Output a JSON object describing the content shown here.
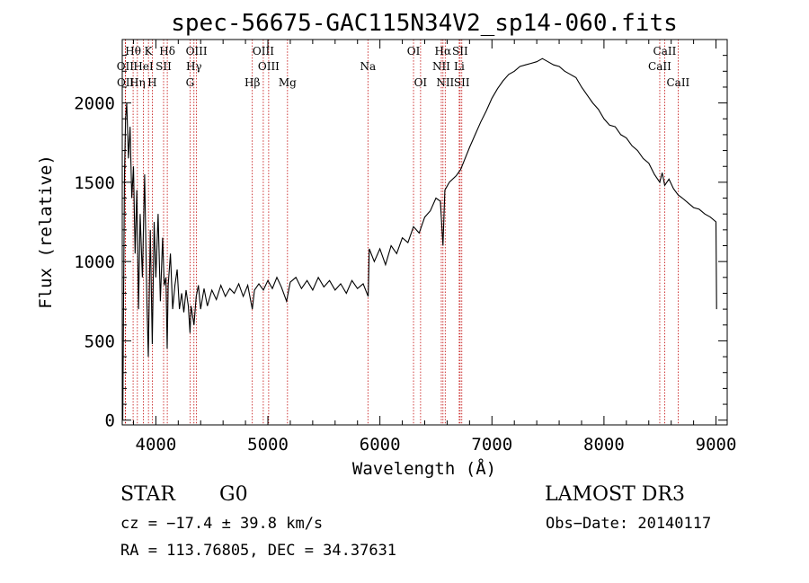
{
  "chart_data": {
    "type": "line",
    "title": "spec-56675-GAC115N34V2_sp14-060.fits",
    "xlabel": "Wavelength (Å)",
    "ylabel": "Flux (relative)",
    "xlim": [
      3700,
      9100
    ],
    "ylim": [
      -30,
      2400
    ],
    "xticks": [
      4000,
      5000,
      6000,
      7000,
      8000,
      9000
    ],
    "yticks": [
      0,
      500,
      1000,
      1500,
      2000
    ],
    "grid": false,
    "series": [
      {
        "name": "flux",
        "points": [
          [
            3705,
            0
          ],
          [
            3712,
            780
          ],
          [
            3720,
            1550
          ],
          [
            3730,
            1900
          ],
          [
            3740,
            2000
          ],
          [
            3755,
            1650
          ],
          [
            3770,
            1850
          ],
          [
            3785,
            1400
          ],
          [
            3800,
            1600
          ],
          [
            3815,
            1050
          ],
          [
            3830,
            1450
          ],
          [
            3845,
            700
          ],
          [
            3860,
            1300
          ],
          [
            3880,
            900
          ],
          [
            3900,
            1550
          ],
          [
            3920,
            750
          ],
          [
            3933,
            400
          ],
          [
            3950,
            1200
          ],
          [
            3968,
            480
          ],
          [
            3985,
            1250
          ],
          [
            4000,
            900
          ],
          [
            4020,
            1300
          ],
          [
            4040,
            750
          ],
          [
            4060,
            1150
          ],
          [
            4075,
            850
          ],
          [
            4090,
            900
          ],
          [
            4101,
            450
          ],
          [
            4110,
            850
          ],
          [
            4130,
            1050
          ],
          [
            4150,
            700
          ],
          [
            4170,
            850
          ],
          [
            4190,
            950
          ],
          [
            4210,
            700
          ],
          [
            4230,
            800
          ],
          [
            4250,
            680
          ],
          [
            4270,
            820
          ],
          [
            4290,
            720
          ],
          [
            4305,
            550
          ],
          [
            4315,
            720
          ],
          [
            4340,
            600
          ],
          [
            4360,
            780
          ],
          [
            4380,
            850
          ],
          [
            4400,
            700
          ],
          [
            4430,
            830
          ],
          [
            4460,
            720
          ],
          [
            4500,
            820
          ],
          [
            4540,
            760
          ],
          [
            4580,
            850
          ],
          [
            4620,
            780
          ],
          [
            4660,
            830
          ],
          [
            4700,
            800
          ],
          [
            4740,
            860
          ],
          [
            4780,
            780
          ],
          [
            4820,
            850
          ],
          [
            4861,
            700
          ],
          [
            4880,
            820
          ],
          [
            4920,
            860
          ],
          [
            4960,
            820
          ],
          [
            5000,
            880
          ],
          [
            5040,
            830
          ],
          [
            5080,
            900
          ],
          [
            5120,
            840
          ],
          [
            5167,
            750
          ],
          [
            5200,
            870
          ],
          [
            5250,
            900
          ],
          [
            5300,
            830
          ],
          [
            5350,
            880
          ],
          [
            5400,
            820
          ],
          [
            5450,
            900
          ],
          [
            5500,
            840
          ],
          [
            5550,
            880
          ],
          [
            5600,
            820
          ],
          [
            5650,
            860
          ],
          [
            5700,
            800
          ],
          [
            5750,
            880
          ],
          [
            5800,
            830
          ],
          [
            5850,
            860
          ],
          [
            5895,
            780
          ],
          [
            5905,
            1080
          ],
          [
            5950,
            1000
          ],
          [
            6000,
            1080
          ],
          [
            6050,
            980
          ],
          [
            6100,
            1100
          ],
          [
            6150,
            1050
          ],
          [
            6200,
            1150
          ],
          [
            6250,
            1120
          ],
          [
            6300,
            1220
          ],
          [
            6350,
            1180
          ],
          [
            6400,
            1280
          ],
          [
            6450,
            1320
          ],
          [
            6500,
            1400
          ],
          [
            6540,
            1380
          ],
          [
            6563,
            1100
          ],
          [
            6580,
            1450
          ],
          [
            6620,
            1500
          ],
          [
            6680,
            1540
          ],
          [
            6720,
            1580
          ],
          [
            6760,
            1650
          ],
          [
            6800,
            1720
          ],
          [
            6850,
            1800
          ],
          [
            6900,
            1880
          ],
          [
            6950,
            1950
          ],
          [
            7000,
            2030
          ],
          [
            7050,
            2090
          ],
          [
            7100,
            2140
          ],
          [
            7150,
            2180
          ],
          [
            7200,
            2200
          ],
          [
            7250,
            2230
          ],
          [
            7300,
            2240
          ],
          [
            7350,
            2250
          ],
          [
            7400,
            2260
          ],
          [
            7450,
            2280
          ],
          [
            7500,
            2260
          ],
          [
            7550,
            2240
          ],
          [
            7600,
            2230
          ],
          [
            7650,
            2200
          ],
          [
            7700,
            2180
          ],
          [
            7750,
            2160
          ],
          [
            7800,
            2100
          ],
          [
            7850,
            2050
          ],
          [
            7900,
            2000
          ],
          [
            7950,
            1960
          ],
          [
            8000,
            1900
          ],
          [
            8050,
            1860
          ],
          [
            8100,
            1850
          ],
          [
            8150,
            1800
          ],
          [
            8200,
            1780
          ],
          [
            8250,
            1730
          ],
          [
            8300,
            1700
          ],
          [
            8350,
            1650
          ],
          [
            8400,
            1620
          ],
          [
            8450,
            1550
          ],
          [
            8498,
            1500
          ],
          [
            8520,
            1560
          ],
          [
            8542,
            1480
          ],
          [
            8580,
            1520
          ],
          [
            8620,
            1460
          ],
          [
            8662,
            1420
          ],
          [
            8700,
            1400
          ],
          [
            8750,
            1370
          ],
          [
            8800,
            1340
          ],
          [
            8850,
            1330
          ],
          [
            8900,
            1300
          ],
          [
            8950,
            1280
          ],
          [
            9000,
            1250
          ],
          [
            9005,
            700
          ]
        ]
      }
    ],
    "annotations": [
      {
        "label": "Hθ",
        "x": 3797,
        "row": 1
      },
      {
        "label": "K",
        "x": 3934,
        "row": 1
      },
      {
        "label": "Hδ",
        "x": 4102,
        "row": 1
      },
      {
        "label": "OIII",
        "x": 4363,
        "row": 1
      },
      {
        "label": "OIII",
        "x": 4959,
        "row": 1
      },
      {
        "label": "OI",
        "x": 6300,
        "row": 1
      },
      {
        "label": "Hα",
        "x": 6563,
        "row": 1
      },
      {
        "label": "SII",
        "x": 6716,
        "row": 1
      },
      {
        "label": "CaII",
        "x": 8542,
        "row": 1
      },
      {
        "label": "OII",
        "x": 3727,
        "row": 2
      },
      {
        "label": "HeI",
        "x": 3889,
        "row": 2
      },
      {
        "label": "SII",
        "x": 4069,
        "row": 2
      },
      {
        "label": "Hγ",
        "x": 4340,
        "row": 2
      },
      {
        "label": "OIII",
        "x": 5007,
        "row": 2
      },
      {
        "label": "Na",
        "x": 5893,
        "row": 2
      },
      {
        "label": "NII",
        "x": 6548,
        "row": 2
      },
      {
        "label": "Li",
        "x": 6708,
        "row": 2
      },
      {
        "label": "CaII",
        "x": 8498,
        "row": 2
      },
      {
        "label": "OII",
        "x": 3729,
        "row": 3
      },
      {
        "label": "Hη",
        "x": 3835,
        "row": 3
      },
      {
        "label": "H",
        "x": 3968,
        "row": 3
      },
      {
        "label": "G",
        "x": 4305,
        "row": 3
      },
      {
        "label": "Hβ",
        "x": 4861,
        "row": 3
      },
      {
        "label": "Mg",
        "x": 5175,
        "row": 3
      },
      {
        "label": "OI",
        "x": 6363,
        "row": 3
      },
      {
        "label": "NII",
        "x": 6583,
        "row": 3
      },
      {
        "label": "SII",
        "x": 6731,
        "row": 3
      },
      {
        "label": "CaII",
        "x": 8662,
        "row": 3
      }
    ],
    "line_markers": [
      3727,
      3729,
      3797,
      3835,
      3889,
      3934,
      3968,
      4069,
      4102,
      4305,
      4340,
      4363,
      4861,
      4959,
      5007,
      5175,
      5893,
      6300,
      6363,
      6548,
      6563,
      6583,
      6708,
      6716,
      6731,
      8498,
      8542,
      8662
    ]
  },
  "info": {
    "object_class": "STAR",
    "subclass": "G0",
    "survey": "LAMOST DR3",
    "cz": "cz = −17.4 ± 39.8 km/s",
    "obs_date": "Obs−Date: 20140117",
    "coords": "RA = 113.76805, DEC =  34.37631"
  },
  "colors": {
    "line": "#000000",
    "marker": "#c00000"
  }
}
